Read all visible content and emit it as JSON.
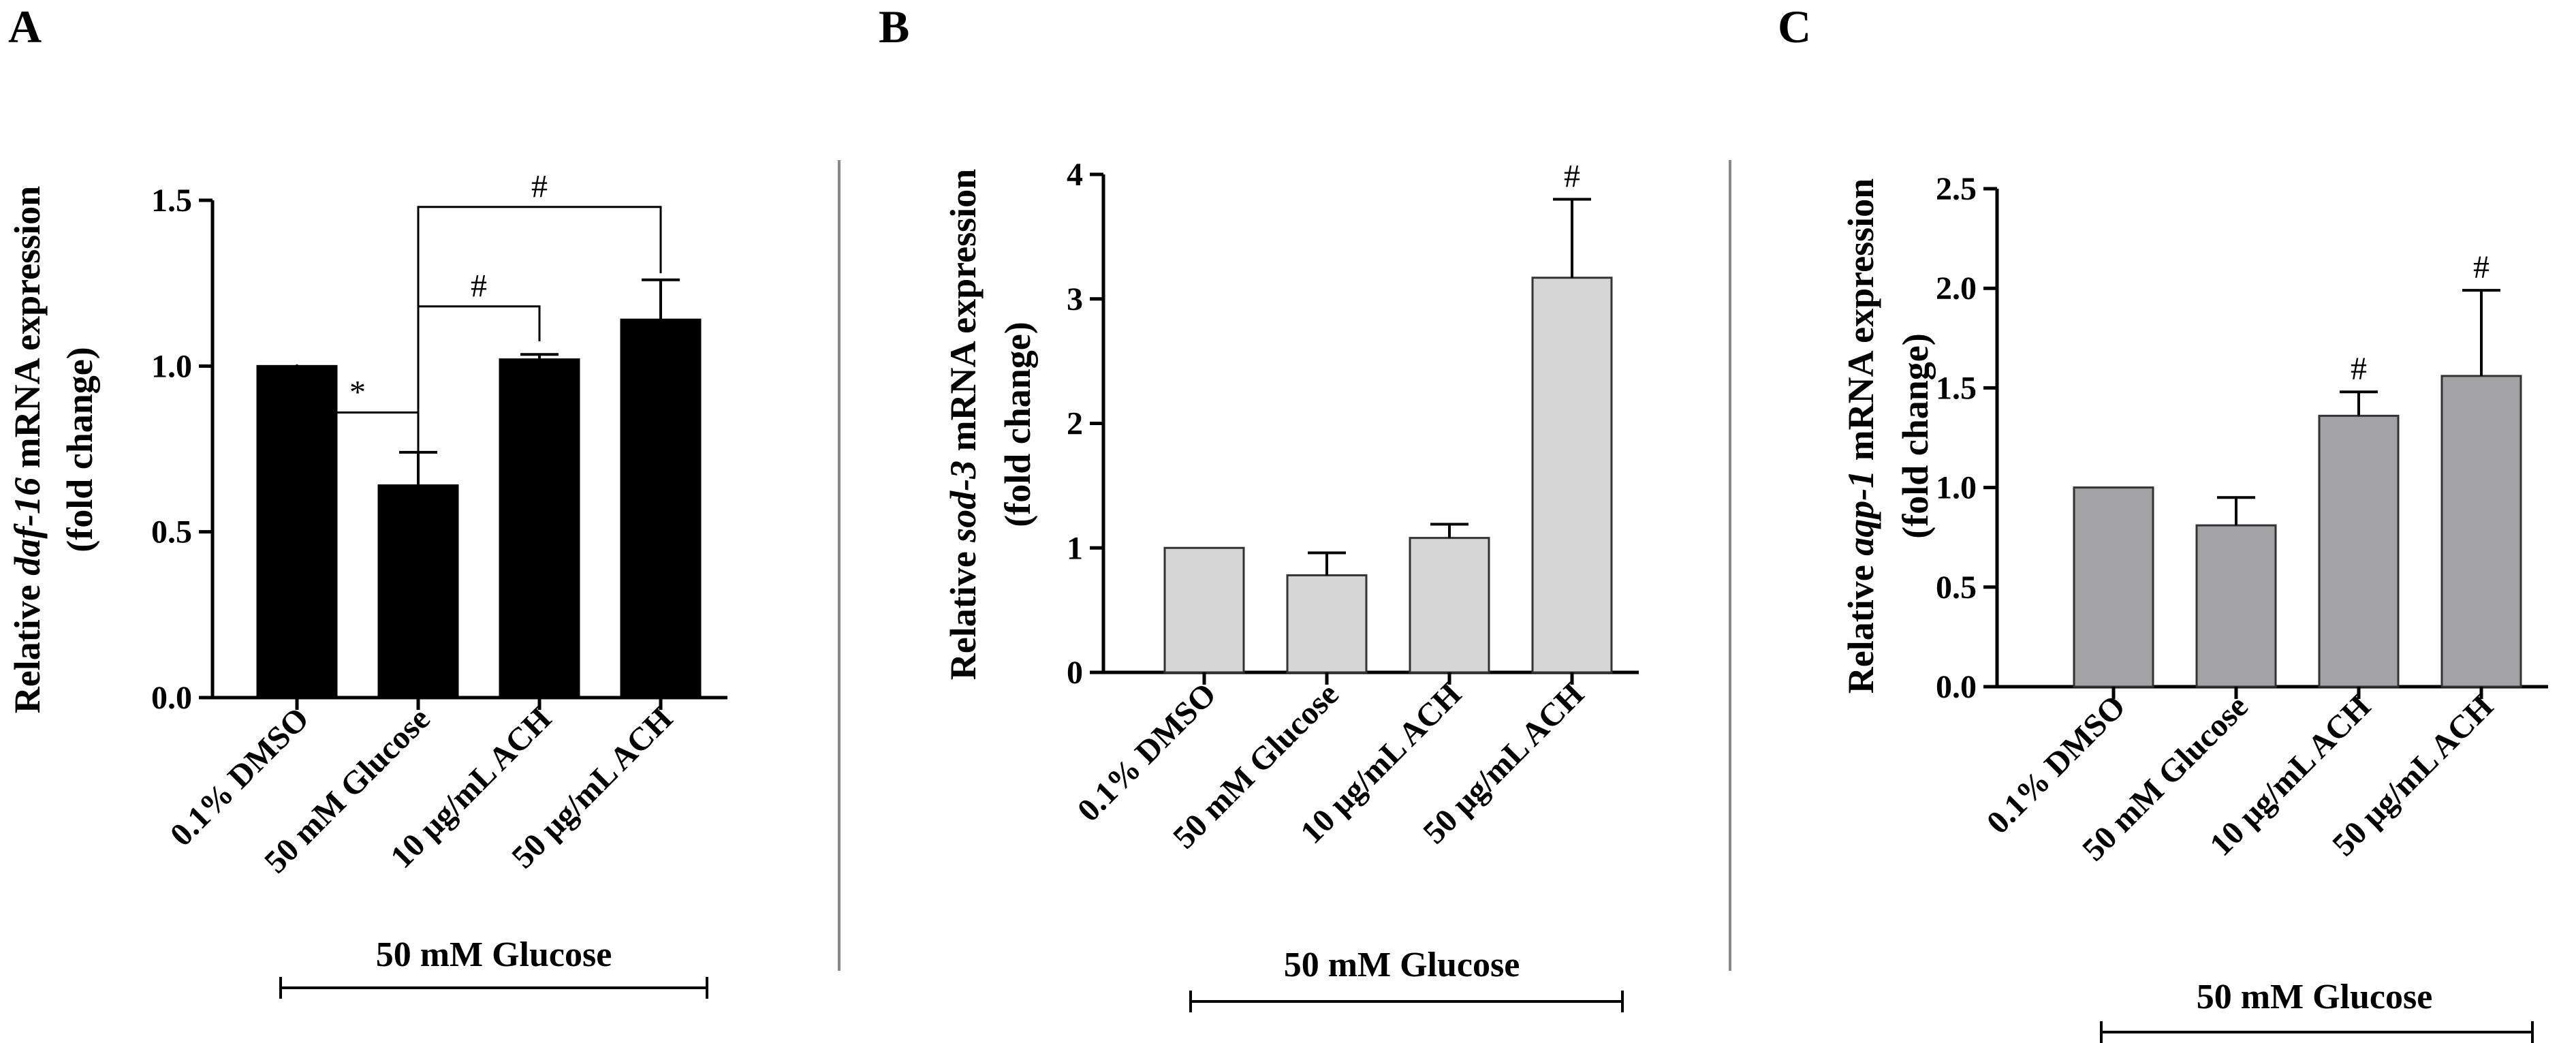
{
  "figure": {
    "panels": [
      "A",
      "B",
      "C"
    ]
  },
  "chart_data": [
    {
      "panel": "A",
      "type": "bar",
      "ylabel_prefix": "Relative ",
      "ylabel_gene": "daf-16",
      "ylabel_suffix": " mRNA expression",
      "ylabel_line2": "(fold change)",
      "categories": [
        "0.1% DMSO",
        "50 mM Glucose",
        "10 μg/mL ACH",
        "50 μg/mL ACH"
      ],
      "values": [
        1.0,
        0.64,
        1.02,
        1.14
      ],
      "errors": [
        0.0,
        0.1,
        0.015,
        0.12
      ],
      "ylim": [
        0,
        1.5
      ],
      "ticks": [
        0.0,
        0.5,
        1.0,
        1.5
      ],
      "tick_labels": [
        "0.0",
        "0.5",
        "1.0",
        "1.5"
      ],
      "bar_color": "#000000",
      "bar_stroke": "#000000",
      "group_label": "50 mM Glucose",
      "significance": [
        {
          "from": 0,
          "to": 1,
          "label": "*"
        },
        {
          "from": 1,
          "to": 2,
          "label": "#"
        },
        {
          "from": 1,
          "to": 3,
          "label": "#"
        }
      ],
      "bar_marks": []
    },
    {
      "panel": "B",
      "type": "bar",
      "ylabel_prefix": "Relative ",
      "ylabel_gene": "sod-3",
      "ylabel_suffix": " mRNA expression",
      "ylabel_line2": "(fold change)",
      "categories": [
        "0.1% DMSO",
        "50 mM Glucose",
        "10 μg/mL ACH",
        "50 μg/mL ACH"
      ],
      "values": [
        1.0,
        0.78,
        1.08,
        3.17
      ],
      "errors": [
        0.0,
        0.18,
        0.11,
        0.63
      ],
      "ylim": [
        0,
        4
      ],
      "ticks": [
        0,
        1,
        2,
        3,
        4
      ],
      "tick_labels": [
        "0",
        "1",
        "2",
        "3",
        "4"
      ],
      "bar_color": "#d6d6d6",
      "bar_stroke": "#333333",
      "group_label": "50 mM Glucose",
      "significance": [],
      "bar_marks": [
        {
          "index": 3,
          "label": "#"
        }
      ]
    },
    {
      "panel": "C",
      "type": "bar",
      "ylabel_prefix": "Relative ",
      "ylabel_gene": "aqp-1",
      "ylabel_suffix": " mRNA expression",
      "ylabel_line2": "(fold change)",
      "categories": [
        "0.1% DMSO",
        "50 mM Glucose",
        "10 μg/mL ACH",
        "50 μg/mL ACH"
      ],
      "values": [
        1.0,
        0.81,
        1.36,
        1.56
      ],
      "errors": [
        0.0,
        0.14,
        0.12,
        0.43
      ],
      "ylim": [
        0,
        2.5
      ],
      "ticks": [
        0.0,
        0.5,
        1.0,
        1.5,
        2.0,
        2.5
      ],
      "tick_labels": [
        "0.0",
        "0.5",
        "1.0",
        "1.5",
        "2.0",
        "2.5"
      ],
      "bar_color": "#a3a3a6",
      "bar_stroke": "#333333",
      "group_label": "50 mM Glucose",
      "significance": [],
      "bar_marks": [
        {
          "index": 2,
          "label": "#"
        },
        {
          "index": 3,
          "label": "#"
        }
      ]
    }
  ]
}
